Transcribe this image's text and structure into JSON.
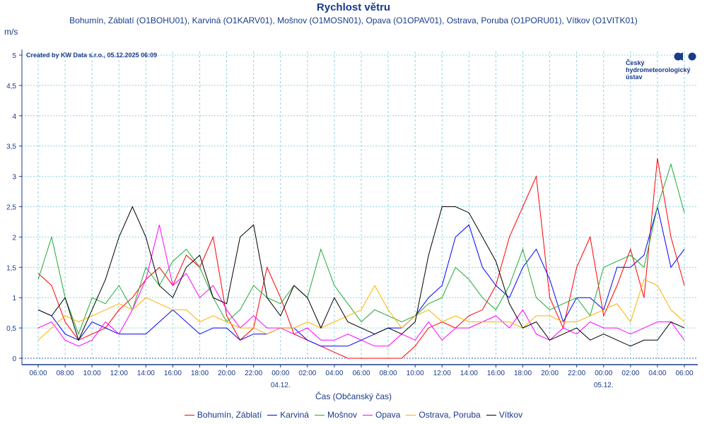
{
  "chart_data": {
    "type": "line",
    "title": "Rychlost větru",
    "subtitle": "Bohumín, Záblatí (O1BOHU01), Karviná (O1KARV01), Mošnov (O1MOSN01), Opava (O1OPAV01), Ostrava, Poruba (O1PORU01), Vítkov (O1VITK01)",
    "ylabel": "m/s",
    "xlabel": "Čas (Občanský čas)",
    "credit": "Created by KW Data s.r.o., 05.12.2025 06:09",
    "logo_text": [
      "Český",
      "hydrometeorologický",
      "ústav"
    ],
    "ylim": [
      0,
      5
    ],
    "yticks": [
      "0",
      "0,5",
      "1",
      "1,5",
      "2",
      "2,5",
      "3",
      "3,5",
      "4",
      "4,5",
      "5"
    ],
    "xticks": [
      "06:00",
      "08:00",
      "10:00",
      "12:00",
      "14:00",
      "16:00",
      "18:00",
      "20:00",
      "22:00",
      "00:00",
      "02:00",
      "04:00",
      "06:00",
      "08:00",
      "10:00",
      "12:00",
      "14:00",
      "16:00",
      "18:00",
      "20:00",
      "22:00",
      "00:00",
      "02:00",
      "04:00",
      "06:00"
    ],
    "date_labels": [
      {
        "at_tick": 9,
        "label": "04.12."
      },
      {
        "at_tick": 21,
        "label": "05.12."
      }
    ],
    "x_interval": "1 hour, from 03.12. 06:00 to 05.12. 06:00",
    "grid": true,
    "legend_placement": "bottom",
    "series": [
      {
        "name": "Bohumín, Záblatí",
        "color": "#ff0000",
        "values": [
          1.4,
          1.2,
          0.6,
          0.3,
          0.4,
          0.5,
          0.8,
          1.0,
          1.3,
          1.5,
          1.2,
          1.7,
          1.5,
          2.0,
          0.7,
          0.3,
          0.5,
          1.5,
          1.0,
          0.4,
          0.3,
          0.2,
          0.1,
          0,
          0,
          0,
          0,
          0,
          0.2,
          0.5,
          0.6,
          0.5,
          0.7,
          0.8,
          1.2,
          2.0,
          2.5,
          3.0,
          1.0,
          0.5,
          1.5,
          2.0,
          0.7,
          1.2,
          1.8,
          1.0,
          3.3,
          2.0,
          1.2
        ]
      },
      {
        "name": "Karviná",
        "color": "#0000ff",
        "values": [
          0.8,
          0.7,
          0.4,
          0.3,
          0.6,
          0.5,
          0.4,
          0.4,
          0.4,
          0.6,
          0.8,
          0.6,
          0.4,
          0.5,
          0.5,
          0.3,
          0.4,
          0.4,
          0.5,
          0.5,
          0.3,
          0.2,
          0.2,
          0.2,
          0.3,
          0.4,
          0.5,
          0.5,
          0.7,
          1.0,
          1.2,
          2.0,
          2.2,
          1.5,
          1.2,
          1.0,
          1.5,
          1.8,
          1.3,
          0.6,
          1.0,
          1.0,
          0.8,
          1.5,
          1.5,
          1.7,
          2.5,
          1.5,
          1.8
        ]
      },
      {
        "name": "Mošnov",
        "color": "#22aa33",
        "values": [
          1.3,
          2.0,
          1.0,
          0.4,
          1.0,
          0.9,
          1.2,
          0.8,
          1.5,
          1.2,
          1.6,
          1.8,
          1.5,
          1.0,
          0.6,
          0.8,
          1.2,
          1.0,
          0.9,
          1.2,
          1.0,
          1.8,
          1.2,
          0.9,
          0.6,
          0.8,
          0.7,
          0.6,
          0.7,
          0.9,
          1.0,
          1.5,
          1.3,
          1.0,
          0.8,
          1.2,
          1.8,
          1.0,
          0.8,
          0.9,
          1.0,
          0.7,
          1.5,
          1.6,
          1.7,
          1.5,
          2.5,
          3.2,
          2.4
        ]
      },
      {
        "name": "Opava",
        "color": "#ff00ff",
        "values": [
          0.5,
          0.6,
          0.3,
          0.2,
          0.3,
          0.6,
          0.4,
          0.8,
          1.3,
          2.2,
          1.2,
          1.4,
          1.0,
          1.2,
          0.8,
          0.5,
          0.7,
          0.5,
          0.5,
          0.4,
          0.5,
          0.3,
          0.3,
          0.4,
          0.3,
          0.2,
          0.2,
          0.4,
          0.3,
          0.6,
          0.3,
          0.5,
          0.5,
          0.6,
          0.7,
          0.5,
          0.8,
          0.4,
          0.3,
          0.5,
          0.4,
          0.6,
          0.5,
          0.5,
          0.4,
          0.5,
          0.6,
          0.6,
          0.3
        ]
      },
      {
        "name": "Ostrava, Poruba",
        "color": "#ffb000",
        "values": [
          0.3,
          0.5,
          0.7,
          0.6,
          0.7,
          0.8,
          0.9,
          0.8,
          1.0,
          0.9,
          0.8,
          0.8,
          0.6,
          0.7,
          0.6,
          0.5,
          0.5,
          0.4,
          0.5,
          0.5,
          0.6,
          0.5,
          0.6,
          0.7,
          0.8,
          1.2,
          0.8,
          0.5,
          0.7,
          0.8,
          0.6,
          0.7,
          0.6,
          0.6,
          0.6,
          0.6,
          0.5,
          0.7,
          0.7,
          0.6,
          0.6,
          0.7,
          0.8,
          0.9,
          0.6,
          1.3,
          1.2,
          0.8,
          0.6
        ]
      },
      {
        "name": "Vítkov",
        "color": "#000000",
        "values": [
          0.8,
          0.7,
          1.0,
          0.3,
          0.8,
          1.3,
          2.0,
          2.5,
          2.0,
          1.2,
          1.0,
          1.5,
          1.7,
          1.0,
          0.9,
          2.0,
          2.2,
          1.0,
          0.7,
          1.2,
          1.0,
          0.5,
          1.0,
          0.6,
          0.5,
          0.4,
          0.5,
          0.4,
          0.6,
          1.7,
          2.5,
          2.5,
          2.4,
          2.0,
          1.6,
          0.9,
          0.5,
          0.6,
          0.3,
          0.4,
          0.5,
          0.3,
          0.4,
          0.3,
          0.2,
          0.3,
          0.3,
          0.6,
          0.5
        ]
      }
    ]
  }
}
